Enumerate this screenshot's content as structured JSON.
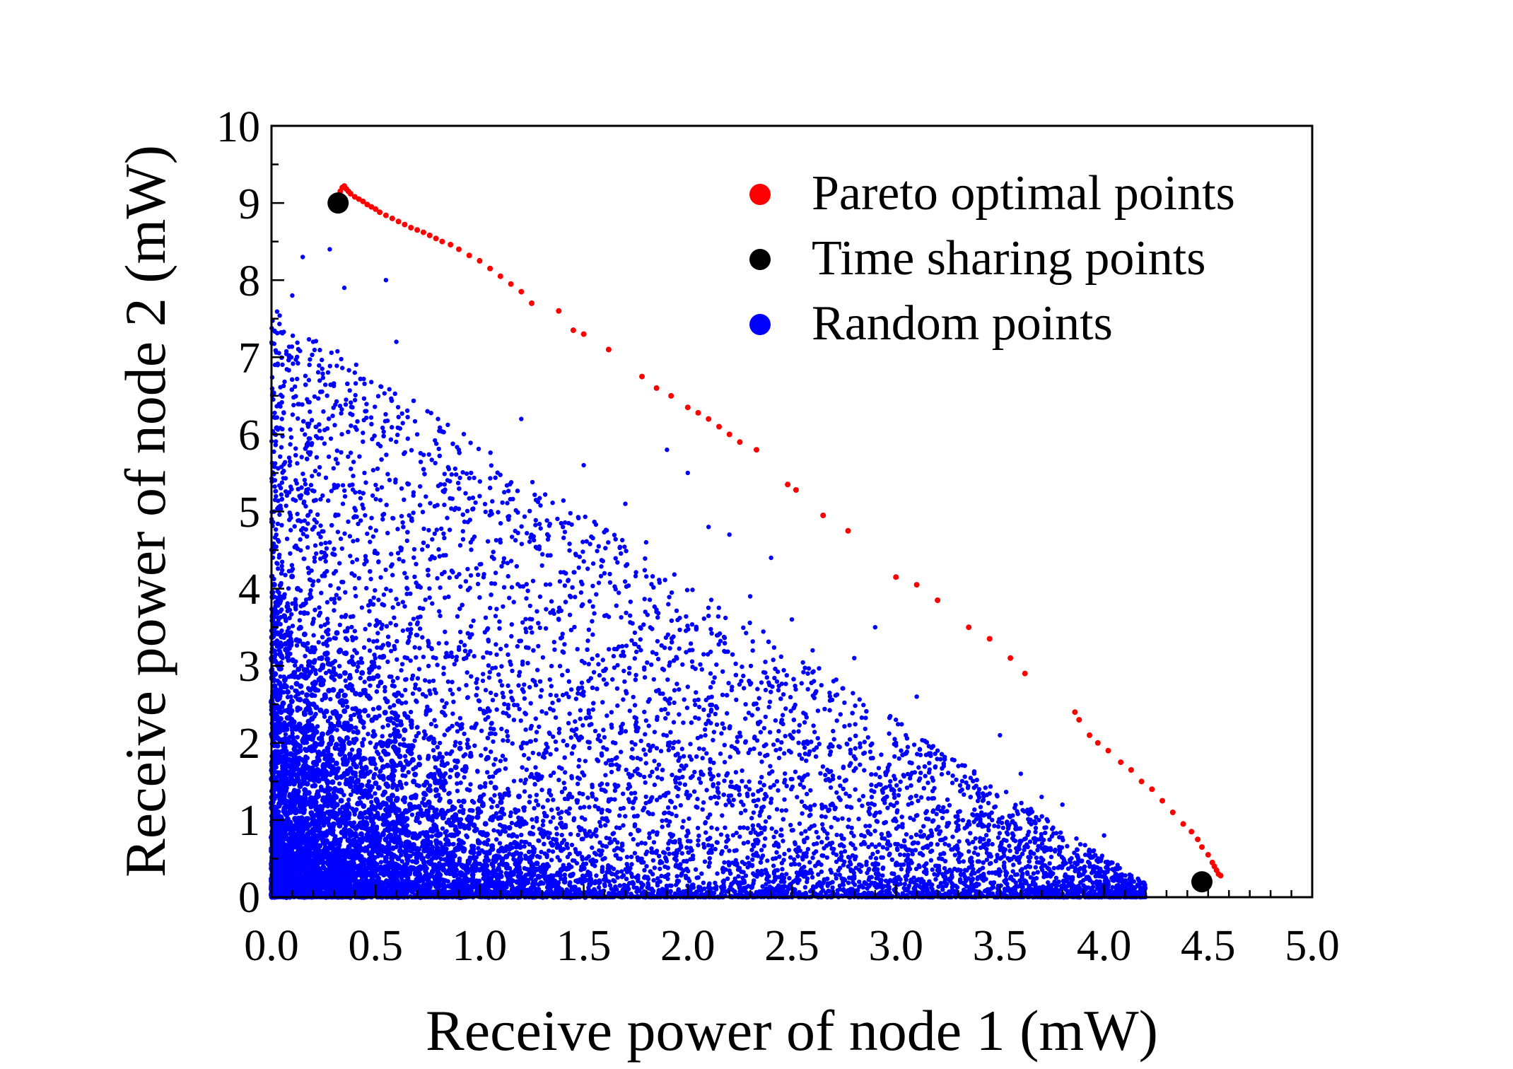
{
  "chart_data": {
    "type": "scatter",
    "title": "",
    "xlabel": "Receive power of node 1 (mW)",
    "ylabel": "Receive power of node 2 (mW)",
    "xlim": [
      0,
      5
    ],
    "ylim": [
      0,
      10
    ],
    "x_ticks": [
      "0.0",
      "0.5",
      "1.0",
      "1.5",
      "2.0",
      "2.5",
      "3.0",
      "3.5",
      "4.0",
      "4.5",
      "5.0"
    ],
    "y_ticks": [
      "0",
      "1",
      "2",
      "3",
      "4",
      "5",
      "6",
      "7",
      "8",
      "9",
      "10"
    ],
    "grid": false,
    "legend_position": "top-right",
    "series": [
      {
        "name": "Pareto optimal points",
        "color": "#ff0000",
        "x": [
          0.3,
          0.32,
          0.33,
          0.34,
          0.35,
          0.36,
          0.37,
          0.38,
          0.4,
          0.42,
          0.44,
          0.46,
          0.48,
          0.5,
          0.52,
          0.55,
          0.58,
          0.61,
          0.64,
          0.67,
          0.7,
          0.73,
          0.76,
          0.79,
          0.82,
          0.86,
          0.9,
          0.95,
          1.0,
          1.05,
          1.1,
          1.15,
          1.2,
          1.25,
          1.38,
          1.45,
          1.5,
          1.62,
          1.78,
          1.85,
          1.92,
          2.0,
          2.05,
          2.1,
          2.15,
          2.2,
          2.25,
          2.33,
          2.48,
          2.52,
          2.65,
          2.77,
          3.0,
          3.1,
          3.2,
          3.35,
          3.45,
          3.55,
          3.62,
          3.86,
          3.88,
          3.93,
          3.97,
          4.02,
          4.08,
          4.13,
          4.18,
          4.23,
          4.28,
          4.33,
          4.38,
          4.42,
          4.45,
          4.47,
          4.5,
          4.52,
          4.53,
          4.54,
          4.55,
          4.56
        ],
        "y": [
          9.05,
          9.1,
          9.15,
          9.2,
          9.22,
          9.18,
          9.15,
          9.12,
          9.08,
          9.05,
          9.02,
          8.98,
          8.95,
          8.92,
          8.88,
          8.84,
          8.8,
          8.76,
          8.72,
          8.68,
          8.65,
          8.62,
          8.58,
          8.54,
          8.5,
          8.46,
          8.4,
          8.32,
          8.25,
          8.15,
          8.05,
          7.95,
          7.85,
          7.7,
          7.6,
          7.35,
          7.3,
          7.1,
          6.75,
          6.6,
          6.5,
          6.35,
          6.28,
          6.2,
          6.1,
          6.0,
          5.9,
          5.8,
          5.35,
          5.28,
          4.95,
          4.75,
          4.15,
          4.05,
          3.85,
          3.5,
          3.35,
          3.1,
          2.9,
          2.4,
          2.3,
          2.1,
          2.0,
          1.9,
          1.75,
          1.65,
          1.5,
          1.4,
          1.25,
          1.1,
          0.95,
          0.85,
          0.75,
          0.65,
          0.55,
          0.45,
          0.4,
          0.35,
          0.3,
          0.28
        ]
      },
      {
        "name": "Time sharing points",
        "color": "#000000",
        "x": [
          0.32,
          4.47
        ],
        "y": [
          9.0,
          0.2
        ]
      },
      {
        "name": "Random points",
        "color": "#0000ff",
        "x": [
          0.05,
          0.1,
          0.15,
          0.2,
          0.28,
          0.35,
          0.4,
          0.45,
          0.55,
          0.6,
          0.7,
          0.8,
          0.9,
          1.0,
          1.1,
          1.2,
          1.3,
          1.4,
          1.5,
          1.6,
          1.7,
          1.8,
          1.9,
          2.0,
          2.1,
          2.2,
          2.3,
          2.4,
          2.5,
          2.6,
          2.7,
          2.8,
          2.9,
          3.0,
          3.1,
          3.2,
          3.3,
          3.4,
          3.5,
          3.6,
          3.7,
          3.8,
          3.9,
          4.0,
          4.1
        ],
        "y": [
          6.2,
          7.8,
          8.3,
          7.2,
          8.4,
          7.9,
          6.8,
          6.3,
          8.0,
          7.2,
          6.0,
          6.2,
          5.8,
          5.2,
          4.6,
          6.2,
          4.3,
          4.8,
          5.6,
          4.2,
          5.1,
          4.6,
          5.8,
          5.5,
          4.8,
          4.7,
          3.9,
          4.4,
          3.6,
          3.2,
          2.8,
          3.1,
          3.5,
          2.3,
          2.6,
          1.9,
          1.7,
          1.4,
          2.1,
          1.6,
          1.3,
          1.2,
          0.3,
          0.8,
          0.1
        ]
      }
    ]
  }
}
